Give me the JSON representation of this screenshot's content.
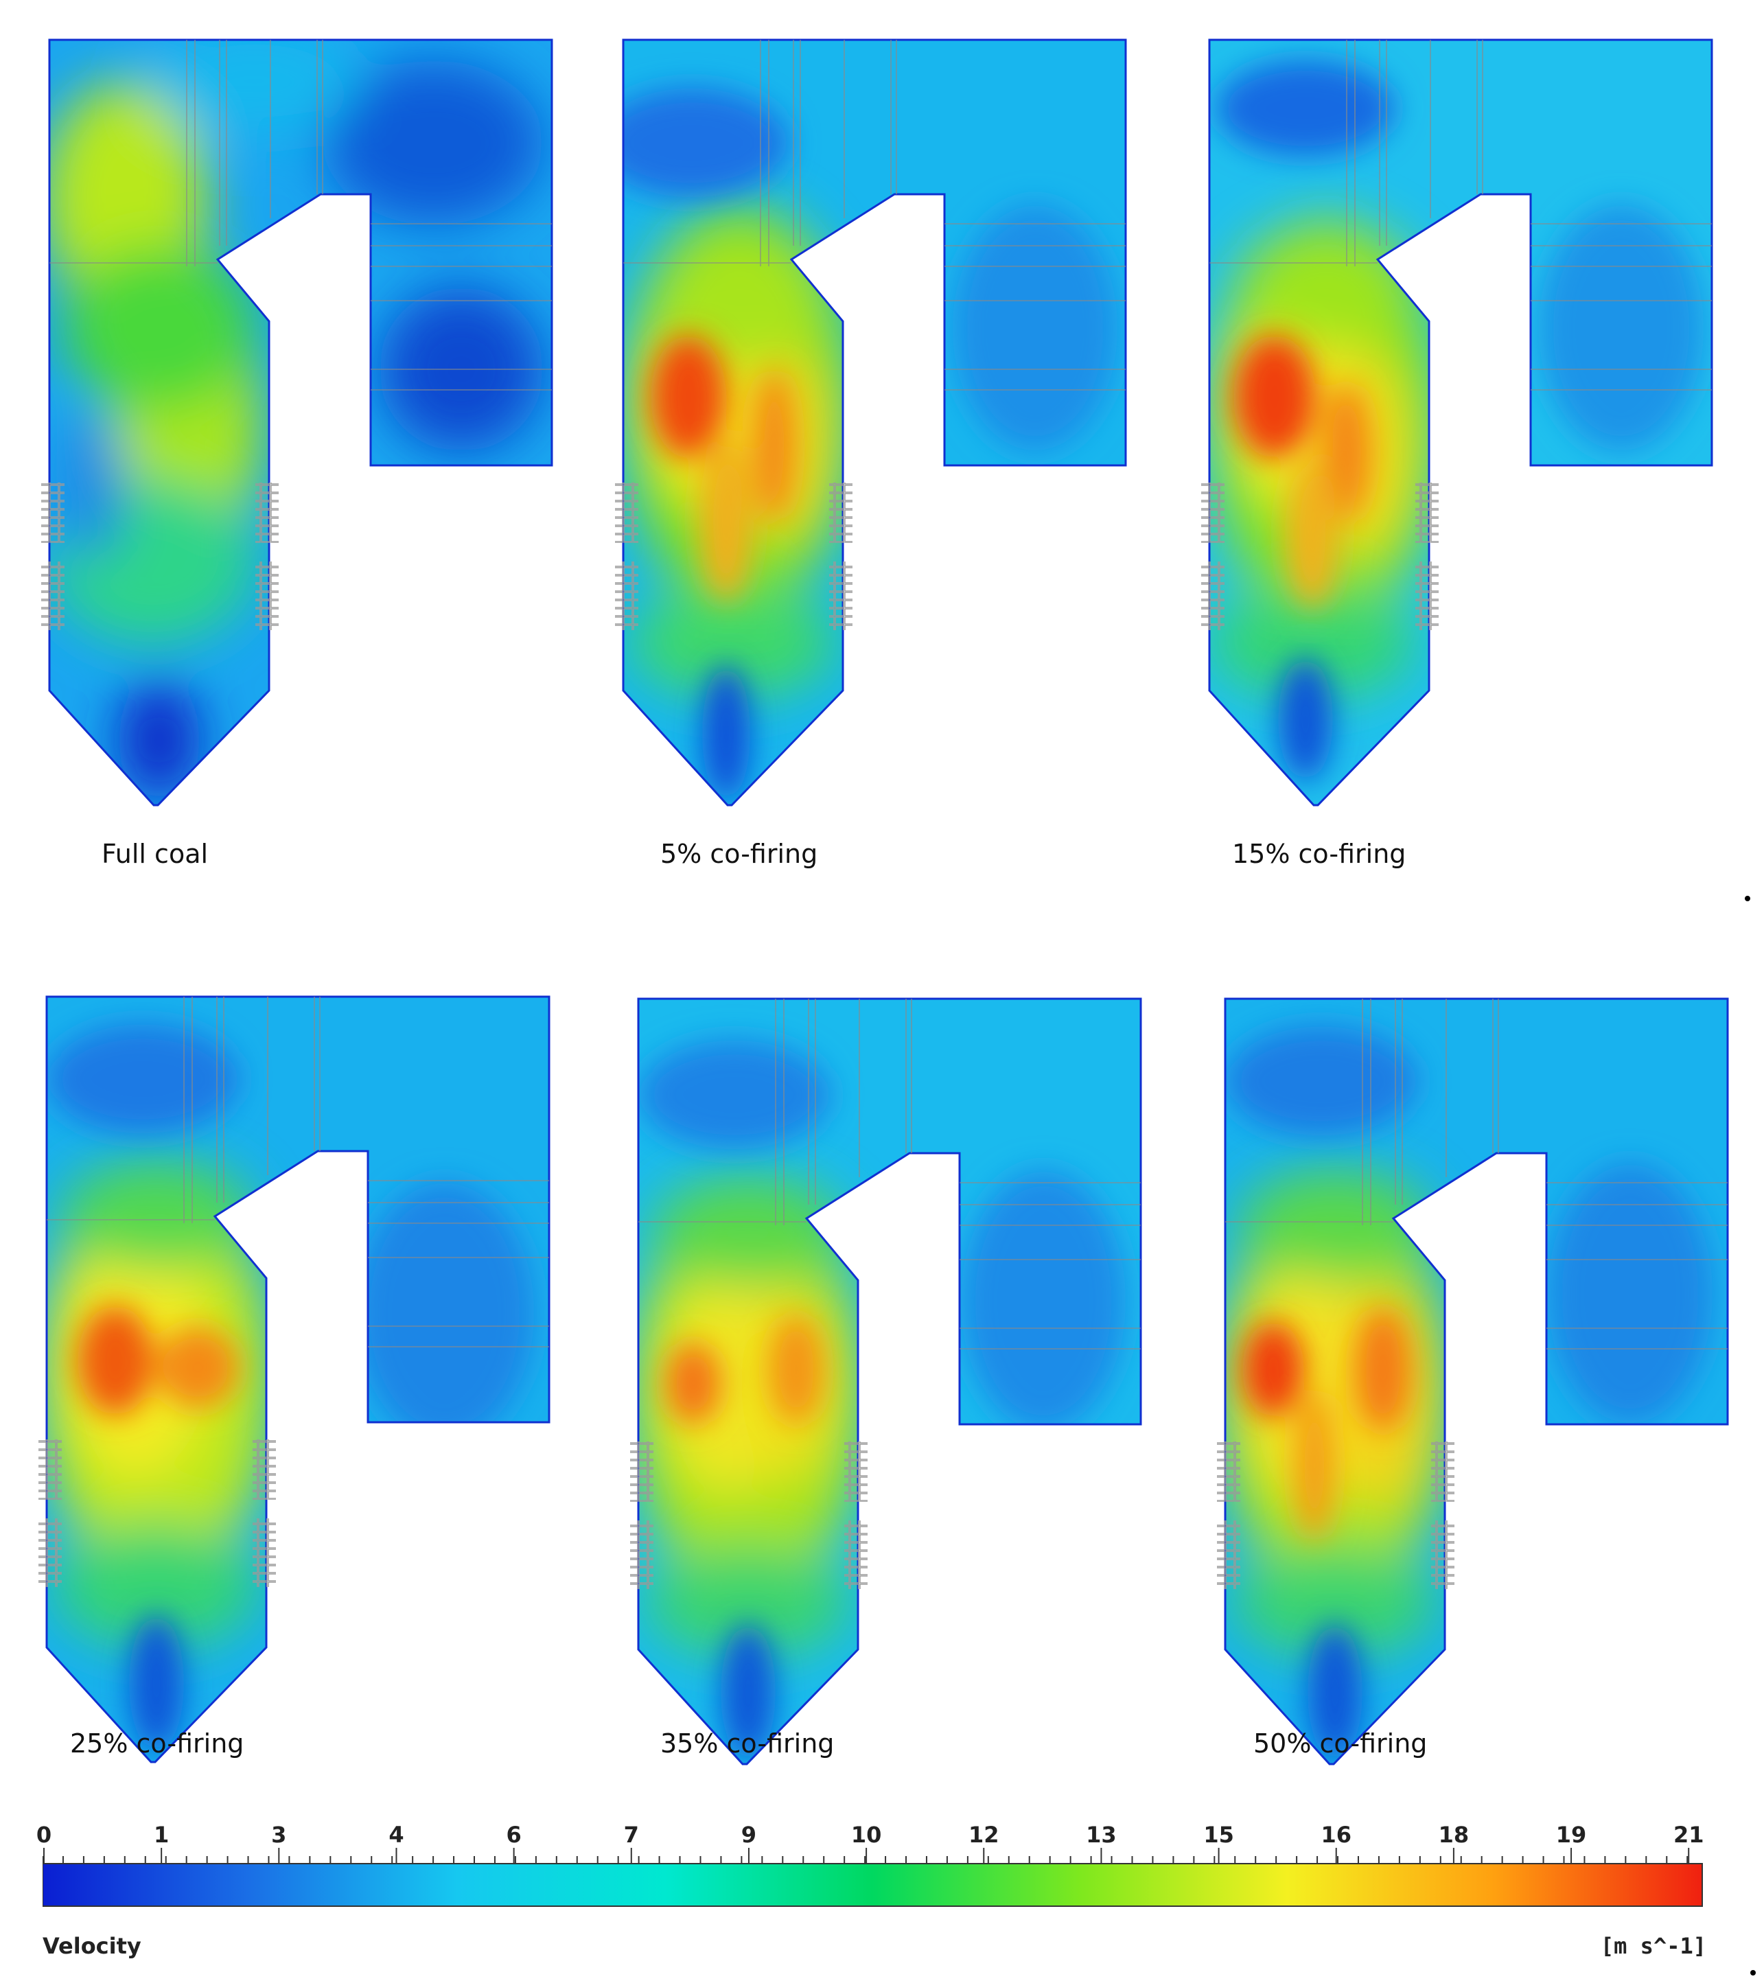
{
  "panels": [
    {
      "label": "Full coal"
    },
    {
      "label": "5% co-firing"
    },
    {
      "label": "15% co-firing"
    },
    {
      "label": "25% co-firing"
    },
    {
      "label": "35% co-firing"
    },
    {
      "label": "50% co-firing"
    }
  ],
  "legend": {
    "title": "Velocity",
    "unit": "[m s^-1]",
    "ticks": [
      "0",
      "1",
      "3",
      "4",
      "6",
      "7",
      "9",
      "10",
      "12",
      "13",
      "15",
      "16",
      "18",
      "19",
      "21"
    ],
    "colors": [
      "#0a1ed2",
      "#1a6fe6",
      "#16c8f0",
      "#00e8d0",
      "#00d860",
      "#7ee81e",
      "#f4f020",
      "#ffa010",
      "#f02010"
    ]
  }
}
